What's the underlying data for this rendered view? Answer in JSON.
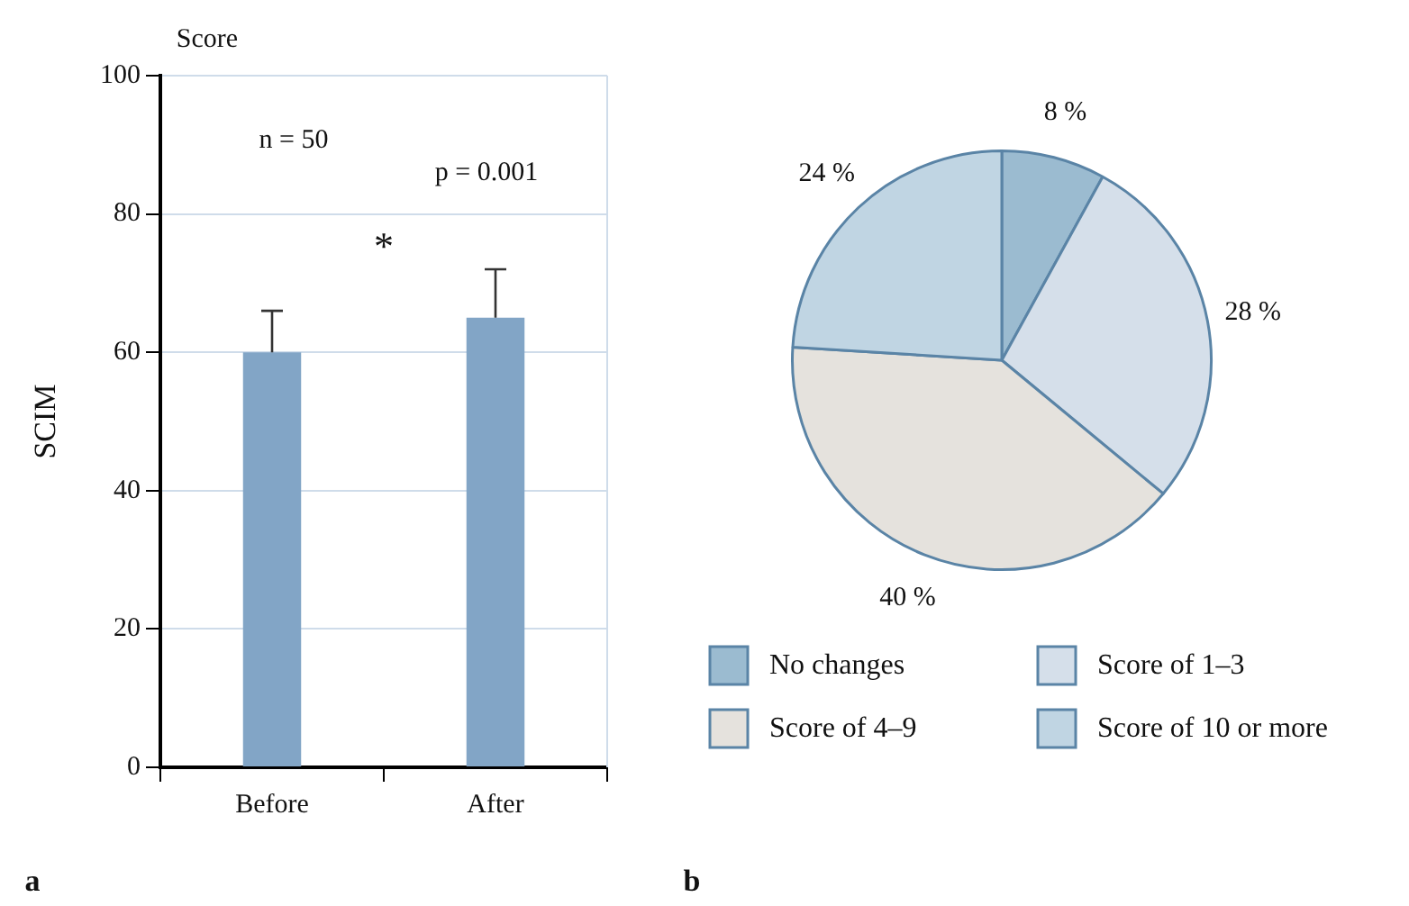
{
  "chart_data": [
    {
      "type": "bar",
      "ylabel": "SCIM",
      "categories": [
        "Before",
        "After"
      ],
      "values": [
        60,
        65
      ],
      "errors": [
        [
          60,
          66
        ],
        [
          65,
          72
        ]
      ],
      "color": "#82a5c6",
      "ylim": [
        0,
        100
      ],
      "yticks": [
        0,
        20,
        40,
        60,
        80,
        100
      ],
      "grid": "y",
      "annotations": [
        "Score",
        "n = 50",
        "p = 0.001",
        "*",
        "a"
      ]
    },
    {
      "type": "pie",
      "categories": [
        "No changes",
        "Score of 1–3",
        "Score of 4–9",
        "Score of 10 or more"
      ],
      "values": [
        8,
        28,
        40,
        24
      ],
      "colors": [
        "#9bbbd0",
        "#d5dfea",
        "#e5e2dd",
        "#c0d5e3"
      ],
      "value_labels": [
        "8 %",
        "28 %",
        "40 %",
        "24 %"
      ],
      "legend": "bottom",
      "annotations": [
        "b"
      ]
    }
  ]
}
